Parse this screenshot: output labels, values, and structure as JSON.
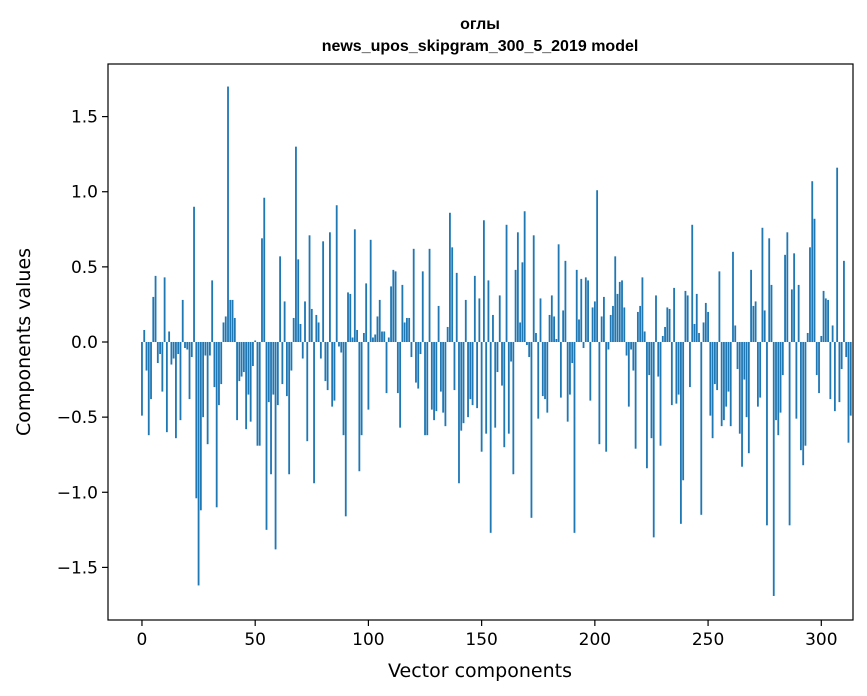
{
  "chart_data": {
    "type": "bar",
    "title": "оглы",
    "subtitle": "news_upos_skipgram_300_5_2019 model",
    "xlabel": "Vector components",
    "ylabel": "Components values",
    "xlim": [
      -15,
      314
    ],
    "ylim": [
      -1.85,
      1.85
    ],
    "xticks": [
      0,
      50,
      100,
      150,
      200,
      250,
      300
    ],
    "yticks": [
      -1.5,
      -1.0,
      -0.5,
      0.0,
      0.5,
      1.0,
      1.5
    ],
    "ytick_labels": [
      "−1.5",
      "−1.0",
      "−0.5",
      "0.0",
      "0.5",
      "1.0",
      "1.5"
    ],
    "color": "#1f77b4",
    "values": [
      -0.49,
      0.08,
      -0.19,
      -0.62,
      -0.38,
      0.3,
      0.44,
      -0.14,
      -0.08,
      -0.33,
      0.43,
      -0.6,
      0.07,
      -0.15,
      -0.11,
      -0.64,
      -0.08,
      -0.52,
      0.28,
      -0.04,
      -0.05,
      -0.38,
      -0.1,
      0.9,
      -1.04,
      -1.62,
      -1.12,
      -0.5,
      -0.09,
      -0.68,
      -0.09,
      0.41,
      -0.3,
      -1.1,
      -0.42,
      -0.28,
      0.13,
      0.17,
      1.7,
      0.28,
      0.28,
      0.16,
      -0.52,
      -0.26,
      -0.23,
      -0.2,
      -0.58,
      -0.35,
      -0.53,
      -0.16,
      0.01,
      -0.69,
      -0.69,
      0.69,
      0.96,
      -1.25,
      -0.4,
      -0.88,
      -0.35,
      -1.38,
      -0.42,
      0.57,
      -0.28,
      0.27,
      -0.36,
      -0.88,
      -0.19,
      0.16,
      1.3,
      0.55,
      0.12,
      -0.11,
      0.27,
      -0.66,
      0.71,
      0.22,
      -0.94,
      0.18,
      0.13,
      -0.11,
      0.67,
      -0.26,
      -0.32,
      0.73,
      -0.43,
      -0.39,
      0.91,
      -0.03,
      -0.07,
      -0.62,
      -1.16,
      0.33,
      0.32,
      0.03,
      0.75,
      0.08,
      -0.86,
      -0.62,
      0.06,
      0.39,
      -0.45,
      0.68,
      0.03,
      0.05,
      0.17,
      0.28,
      0.07,
      0.07,
      -0.34,
      0.03,
      0.37,
      0.48,
      0.47,
      -0.34,
      -0.57,
      0.38,
      0.13,
      0.16,
      0.16,
      -0.1,
      0.62,
      -0.27,
      -0.31,
      -0.08,
      0.47,
      -0.62,
      -0.62,
      0.62,
      -0.45,
      -0.52,
      -0.46,
      0.24,
      -0.33,
      -0.47,
      -0.56,
      0.1,
      0.86,
      0.63,
      -0.32,
      0.46,
      -0.94,
      -0.59,
      -0.54,
      0.28,
      -0.5,
      -0.38,
      -0.42,
      0.44,
      -0.44,
      0.29,
      -0.73,
      0.81,
      -0.61,
      0.41,
      -1.27,
      0.18,
      -0.57,
      -0.2,
      0.31,
      -0.29,
      -0.7,
      0.78,
      -0.61,
      -0.13,
      -0.88,
      0.48,
      0.73,
      0.13,
      0.53,
      0.87,
      -0.02,
      -0.1,
      -1.17,
      0.71,
      0.06,
      -0.51,
      0.29,
      -0.36,
      -0.38,
      -0.47,
      0.18,
      0.31,
      0.17,
      0.02,
      0.65,
      -0.37,
      0.21,
      0.54,
      -0.53,
      -0.35,
      -0.14,
      -1.27,
      0.48,
      0.15,
      0.42,
      -0.04,
      0.43,
      0.41,
      -0.39,
      0.23,
      0.27,
      1.01,
      -0.68,
      0.17,
      0.3,
      -0.73,
      -0.05,
      0.18,
      0.24,
      0.57,
      0.32,
      0.4,
      0.41,
      0.23,
      -0.09,
      -0.43,
      -0.05,
      -0.19,
      -0.71,
      0.2,
      0.24,
      0.43,
      0.07,
      -0.84,
      -0.22,
      -0.64,
      -1.3,
      0.31,
      -0.23,
      -0.69,
      0.04,
      0.1,
      0.23,
      0.22,
      -0.42,
      0.36,
      -0.41,
      -0.35,
      -1.21,
      -0.92,
      0.34,
      0.31,
      -0.3,
      0.78,
      0.12,
      0.32,
      0.06,
      -1.15,
      0.13,
      0.26,
      0.2,
      -0.49,
      -0.64,
      -0.28,
      -0.32,
      0.47,
      -0.56,
      -0.52,
      -0.43,
      -0.33,
      -0.56,
      0.6,
      0.11,
      -0.18,
      -0.61,
      -0.83,
      -0.25,
      -0.5,
      -0.74,
      0.48,
      0.24,
      0.27,
      -0.43,
      -0.37,
      0.76,
      0.21,
      -1.22,
      0.69,
      0.38,
      -1.69,
      -0.52,
      -0.62,
      -0.47,
      -0.22,
      0.58,
      0.73,
      -1.22,
      0.35,
      0.59,
      -0.51,
      0.38,
      -0.72,
      -0.82,
      -0.69,
      0.06,
      0.63,
      1.07,
      0.82,
      -0.22,
      -0.34,
      0.04,
      0.34,
      0.29,
      0.28,
      -0.38,
      0.11,
      -0.46,
      1.16,
      -0.4,
      -0.18,
      0.54,
      -0.1,
      -0.67,
      -0.49
    ]
  }
}
